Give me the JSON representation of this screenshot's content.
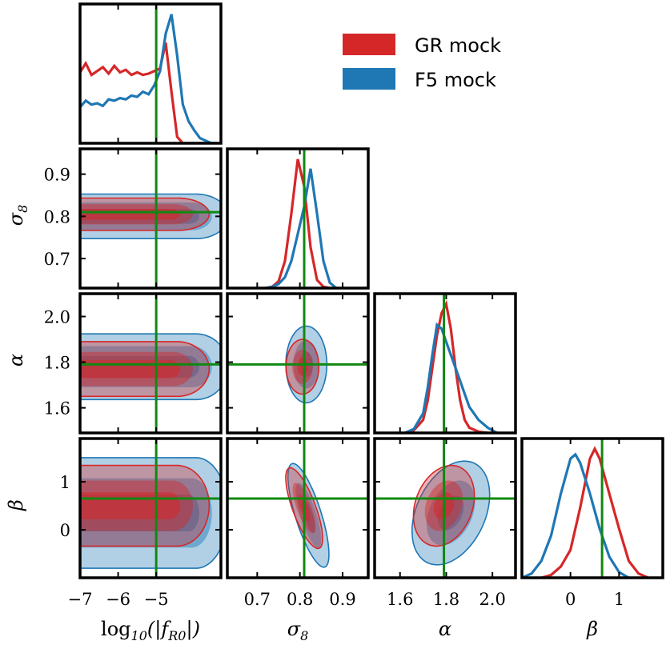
{
  "chart_data": {
    "type": "corner",
    "parameters": [
      {
        "key": "f",
        "label": "log10(|fR0|)",
        "label_parts": [
          "log",
          "10",
          "(|f",
          "R0",
          "|)"
        ],
        "range": [
          -7,
          -3.3
        ],
        "ticks": [
          -7,
          -6,
          -5
        ],
        "tick_labels": [
          "−7",
          "−6",
          "−5"
        ],
        "true_value": -5
      },
      {
        "key": "s8",
        "label": "σ8",
        "label_parts": [
          "σ",
          "8"
        ],
        "range": [
          0.63,
          0.96
        ],
        "ticks": [
          0.7,
          0.8,
          0.9
        ],
        "tick_labels": [
          "0.7",
          "0.8",
          "0.9"
        ],
        "true_value": 0.81
      },
      {
        "key": "alpha",
        "label": "α",
        "label_parts": [
          "α"
        ],
        "range": [
          1.49,
          2.1
        ],
        "ticks": [
          1.6,
          1.8,
          2.0
        ],
        "tick_labels": [
          "1.6",
          "1.8",
          "2.0"
        ],
        "true_value": 1.79
      },
      {
        "key": "beta",
        "label": "β",
        "label_parts": [
          "β"
        ],
        "range": [
          -1.0,
          1.9
        ],
        "ticks": [
          0,
          1
        ],
        "tick_labels": [
          "0",
          "1"
        ],
        "true_value": 0.65
      }
    ],
    "truth_color": "#118811",
    "legend": {
      "position": "top-right",
      "entries": [
        {
          "name": "GR mock",
          "color": "#d62728"
        },
        {
          "name": "F5 mock",
          "color": "#1f77b4"
        }
      ]
    },
    "series": [
      {
        "name": "GR mock",
        "color": "#d62728",
        "marginals": {
          "f": {
            "x": [
              -7.0,
              -6.85,
              -6.7,
              -6.55,
              -6.4,
              -6.25,
              -6.1,
              -5.95,
              -5.8,
              -5.65,
              -5.5,
              -5.35,
              -5.2,
              -5.05,
              -4.9,
              -4.75,
              -4.6,
              -4.45,
              -4.3,
              -4.15,
              -4.0,
              -3.85,
              -3.7,
              -3.55,
              -3.4
            ],
            "y": [
              0.55,
              0.62,
              0.53,
              0.56,
              0.59,
              0.54,
              0.6,
              0.55,
              0.57,
              0.53,
              0.55,
              0.53,
              0.54,
              0.56,
              0.58,
              0.78,
              0.4,
              0.05,
              0,
              0,
              0,
              0,
              0,
              0,
              0
            ]
          },
          "s8": {
            "x": [
              0.72,
              0.735,
              0.75,
              0.765,
              0.78,
              0.795,
              0.81,
              0.825,
              0.84,
              0.855,
              0.87
            ],
            "y": [
              0,
              0.01,
              0.05,
              0.2,
              0.55,
              0.95,
              0.75,
              0.3,
              0.06,
              0.01,
              0
            ]
          },
          "alpha": {
            "x": [
              1.62,
              1.66,
              1.7,
              1.72,
              1.74,
              1.76,
              1.78,
              1.8,
              1.82,
              1.84,
              1.86,
              1.88,
              1.9,
              1.94,
              1.98
            ],
            "y": [
              0,
              0.02,
              0.1,
              0.25,
              0.5,
              0.75,
              0.92,
              0.99,
              0.8,
              0.5,
              0.25,
              0.1,
              0.04,
              0.01,
              0
            ]
          },
          "beta": {
            "x": [
              -0.6,
              -0.4,
              -0.2,
              0,
              0.2,
              0.4,
              0.5,
              0.6,
              0.8,
              1.0,
              1.2,
              1.4,
              1.6
            ],
            "y": [
              0,
              0.02,
              0.08,
              0.2,
              0.5,
              0.85,
              0.92,
              0.85,
              0.6,
              0.35,
              0.12,
              0.03,
              0
            ]
          }
        },
        "contours": [
          {
            "x": "f",
            "y": "s8",
            "center": [
              -5.9,
              0.805
            ],
            "sigma": [
              1.2,
              0.016
            ],
            "rho": 0,
            "x_range": [
              -7.0,
              -4.5
            ]
          },
          {
            "x": "f",
            "y": "alpha",
            "center": [
              -5.9,
              1.77
            ],
            "sigma": [
              1.2,
              0.05
            ],
            "rho": 0,
            "x_range": [
              -7.0,
              -4.5
            ]
          },
          {
            "x": "f",
            "y": "beta",
            "center": [
              -5.9,
              0.5
            ],
            "sigma": [
              1.2,
              0.35
            ],
            "rho": 0,
            "x_range": [
              -7.0,
              -4.5
            ]
          },
          {
            "x": "s8",
            "y": "alpha",
            "center": [
              0.806,
              1.78
            ],
            "sigma": [
              0.016,
              0.05
            ],
            "rho": 0
          },
          {
            "x": "s8",
            "y": "beta",
            "center": [
              0.81,
              0.45
            ],
            "sigma": [
              0.018,
              0.35
            ],
            "rho": -0.75
          },
          {
            "x": "alpha",
            "y": "beta",
            "center": [
              1.79,
              0.5
            ],
            "sigma": [
              0.055,
              0.35
            ],
            "rho": 0.25
          }
        ]
      },
      {
        "name": "F5 mock",
        "color": "#1f77b4",
        "marginals": {
          "f": {
            "x": [
              -7.0,
              -6.85,
              -6.7,
              -6.55,
              -6.4,
              -6.25,
              -6.1,
              -5.95,
              -5.8,
              -5.65,
              -5.5,
              -5.35,
              -5.2,
              -5.05,
              -4.9,
              -4.75,
              -4.6,
              -4.45,
              -4.3,
              -4.15,
              -4.0,
              -3.85,
              -3.7,
              -3.55,
              -3.4
            ],
            "y": [
              0.28,
              0.33,
              0.3,
              0.31,
              0.29,
              0.34,
              0.33,
              0.35,
              0.34,
              0.37,
              0.36,
              0.4,
              0.38,
              0.45,
              0.56,
              0.85,
              1.0,
              0.68,
              0.3,
              0.17,
              0.1,
              0.04,
              0.02,
              0,
              0
            ]
          },
          "s8": {
            "x": [
              0.72,
              0.735,
              0.75,
              0.765,
              0.78,
              0.795,
              0.81,
              0.825,
              0.84,
              0.855,
              0.87,
              0.885
            ],
            "y": [
              0,
              0.01,
              0.03,
              0.08,
              0.2,
              0.4,
              0.6,
              0.88,
              0.55,
              0.2,
              0.04,
              0
            ]
          },
          "alpha": {
            "x": [
              1.62,
              1.66,
              1.7,
              1.72,
              1.74,
              1.76,
              1.78,
              1.8,
              1.82,
              1.84,
              1.86,
              1.88,
              1.9,
              1.94,
              1.98,
              2.02
            ],
            "y": [
              0,
              0.03,
              0.15,
              0.35,
              0.6,
              0.83,
              0.8,
              0.7,
              0.6,
              0.5,
              0.4,
              0.3,
              0.2,
              0.1,
              0.04,
              0
            ]
          },
          "beta": {
            "x": [
              -1.0,
              -0.8,
              -0.6,
              -0.4,
              -0.2,
              0,
              0.1,
              0.2,
              0.4,
              0.6,
              0.8,
              1.0,
              1.2
            ],
            "y": [
              0,
              0.03,
              0.12,
              0.3,
              0.6,
              0.85,
              0.88,
              0.82,
              0.6,
              0.35,
              0.15,
              0.04,
              0
            ]
          }
        },
        "contours": [
          {
            "x": "f",
            "y": "s8",
            "center": [
              -5.7,
              0.8
            ],
            "sigma": [
              1.4,
              0.022
            ],
            "rho": 0,
            "x_range": [
              -7.0,
              -4.0
            ]
          },
          {
            "x": "f",
            "y": "alpha",
            "center": [
              -5.7,
              1.78
            ],
            "sigma": [
              1.4,
              0.06
            ],
            "rho": 0.1,
            "x_range": [
              -7.0,
              -4.0
            ]
          },
          {
            "x": "f",
            "y": "beta",
            "center": [
              -5.7,
              0.35
            ],
            "sigma": [
              1.4,
              0.48
            ],
            "rho": 0,
            "x_range": [
              -7.0,
              -4.0
            ]
          },
          {
            "x": "s8",
            "y": "alpha",
            "center": [
              0.815,
              1.79
            ],
            "sigma": [
              0.02,
              0.07
            ],
            "rho": 0
          },
          {
            "x": "s8",
            "y": "beta",
            "center": [
              0.82,
              0.3
            ],
            "sigma": [
              0.02,
              0.45
            ],
            "rho": -0.75
          },
          {
            "x": "alpha",
            "y": "beta",
            "center": [
              1.82,
              0.35
            ],
            "sigma": [
              0.07,
              0.45
            ],
            "rho": 0.35
          }
        ]
      }
    ]
  }
}
